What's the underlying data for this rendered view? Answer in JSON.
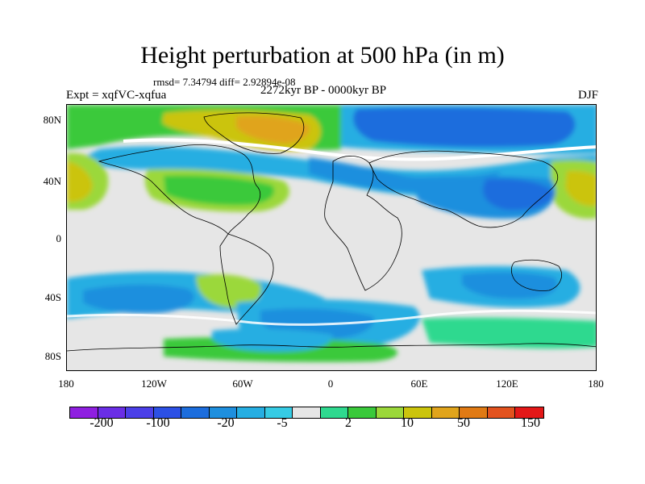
{
  "title": "Height perturbation at 500 hPa (in m)",
  "stats": "rmsd= 7.34794 diff= 2.92894e-08",
  "experiment": "Expt = xqfVC-xqfua",
  "period": "2272kyr BP - 0000kyr BP",
  "season": "DJF",
  "lat_labels": [
    "80N",
    "40N",
    "0",
    "40S",
    "80S"
  ],
  "lon_labels": [
    "180",
    "120W",
    "60W",
    "0",
    "60E",
    "120E",
    "180"
  ],
  "colorbar": {
    "labels": [
      "-200",
      "-100",
      "-20",
      "-5",
      "2",
      "10",
      "50",
      "150"
    ],
    "colors": [
      "#8f1fe0",
      "#6a2ee6",
      "#4b3fe8",
      "#2c50e5",
      "#1c6ddd",
      "#1e8fde",
      "#26aee2",
      "#36cbe4",
      "#e6e6e6",
      "#2fd98f",
      "#3ac93b",
      "#9bd83a",
      "#cbc40c",
      "#e0a41c",
      "#e07a14",
      "#e2521e",
      "#e31818"
    ]
  },
  "palette": {
    "background": "#e6e6e6",
    "land_outline": "#000000",
    "white_band": "#ffffff"
  }
}
